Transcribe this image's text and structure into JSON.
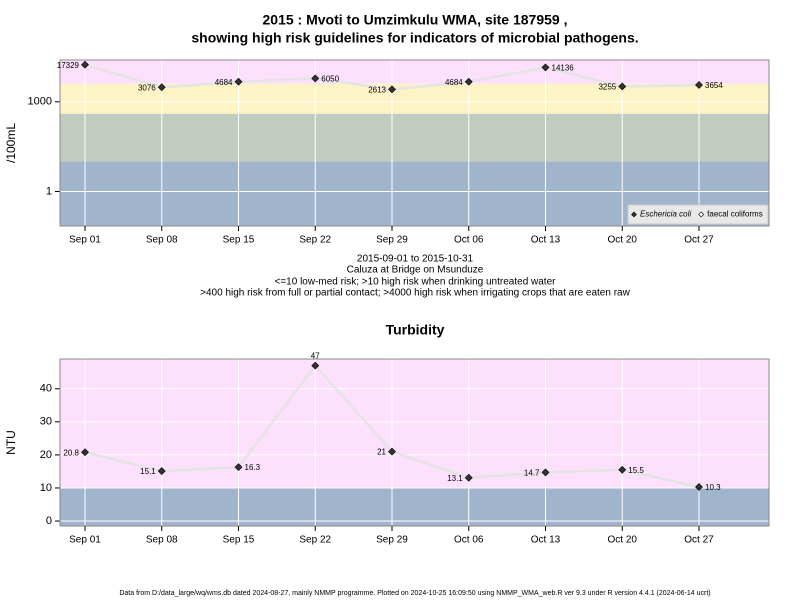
{
  "chart_data": [
    {
      "type": "line",
      "title": [
        "2015 : Mvoti to Umzimkulu WMA, site 187959 ,",
        "showing high risk guidelines for indicators of microbial pathogens."
      ],
      "notes": [
        "2015-09-01 to 2015-10-31",
        "Caluza at Bridge on Msunduze",
        "<=10 low-med risk; >10 high risk when drinking untreated water",
        ">400 high risk from full or partial contact; >4000 high risk when irrigating crops that are eaten raw"
      ],
      "ylabel": "/100mL",
      "categories": [
        "Sep 01",
        "Sep 08",
        "Sep 15",
        "Sep 22",
        "Sep 29",
        "Oct 06",
        "Oct 13",
        "Oct 20",
        "Oct 27"
      ],
      "log_scale": true,
      "ylim": [
        0.07,
        25000
      ],
      "yticks": [
        1,
        1000
      ],
      "grid": true,
      "bands": [
        {
          "from": 0.07,
          "to": 10,
          "color": "#a0b4cc"
        },
        {
          "from": 10,
          "to": 400,
          "color": "#c2cbbf"
        },
        {
          "from": 400,
          "to": 4000,
          "color": "#fcf4c4"
        },
        {
          "from": 4000,
          "to": 25000,
          "color": "#fde0fc"
        }
      ],
      "legend": "bottom-right",
      "series": [
        {
          "name": "Eschericia coli",
          "color": "#333333",
          "values": [
            17329,
            3076,
            4684,
            6050,
            2613,
            4684,
            14136,
            3255,
            3654
          ]
        },
        {
          "name": "faecal coliforms",
          "color": "#ffffff",
          "values": [
            null,
            null,
            null,
            null,
            null,
            null,
            null,
            null,
            null
          ]
        }
      ]
    },
    {
      "type": "line",
      "title": "Turbidity",
      "ylabel": "NTU",
      "categories": [
        "Sep 01",
        "Sep 08",
        "Sep 15",
        "Sep 22",
        "Sep 29",
        "Oct 06",
        "Oct 13",
        "Oct 20",
        "Oct 27"
      ],
      "ylim": [
        -1.5,
        49
      ],
      "yticks": [
        0,
        10,
        20,
        30,
        40
      ],
      "grid": true,
      "bands": [
        {
          "from": -1.5,
          "to": 10,
          "color": "#a0b4cc"
        },
        {
          "from": 10,
          "to": 49,
          "color": "#fde0fc"
        }
      ],
      "series": [
        {
          "name": "Turbidity",
          "color": "#333333",
          "values": [
            20.8,
            15.1,
            16.3,
            47,
            21,
            13.1,
            14.7,
            15.5,
            10.3
          ]
        }
      ]
    }
  ],
  "footer": "Data from D:/data_large/wq/wms.db dated 2024-08-27, mainly NMMP programme. Plotted on 2024-10-25 16:09:50 using NMMP_WMA_web.R ver 9.3 under R version 4.4.1 (2024-06-14 ucrt)"
}
